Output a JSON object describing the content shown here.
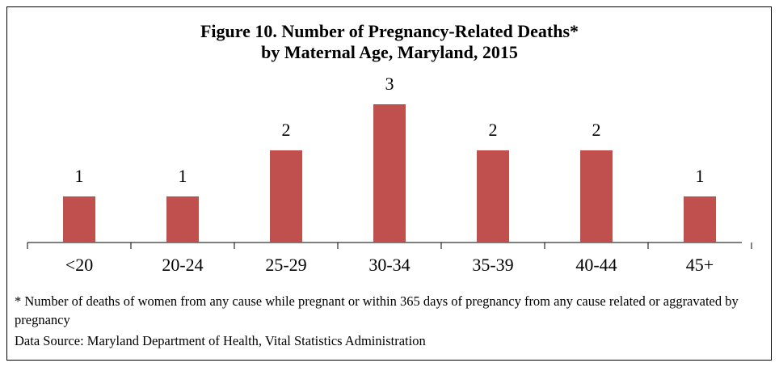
{
  "chart_data": {
    "type": "bar",
    "title": [
      "Figure 10. Number of Pregnancy-Related Deaths*",
      "by Maternal Age, Maryland, 2015"
    ],
    "categories": [
      "<20",
      "20-24",
      "25-29",
      "30-34",
      "35-39",
      "40-44",
      "45+"
    ],
    "values": [
      1,
      1,
      2,
      3,
      2,
      2,
      1
    ],
    "color": "#c0504d",
    "notes": [
      "* Number of deaths of women from any cause while pregnant or within 365 days of pregnancy from any cause related or aggravated by pregnancy",
      "Data Source: Maryland Department of Health, Vital Statistics Administration"
    ]
  }
}
